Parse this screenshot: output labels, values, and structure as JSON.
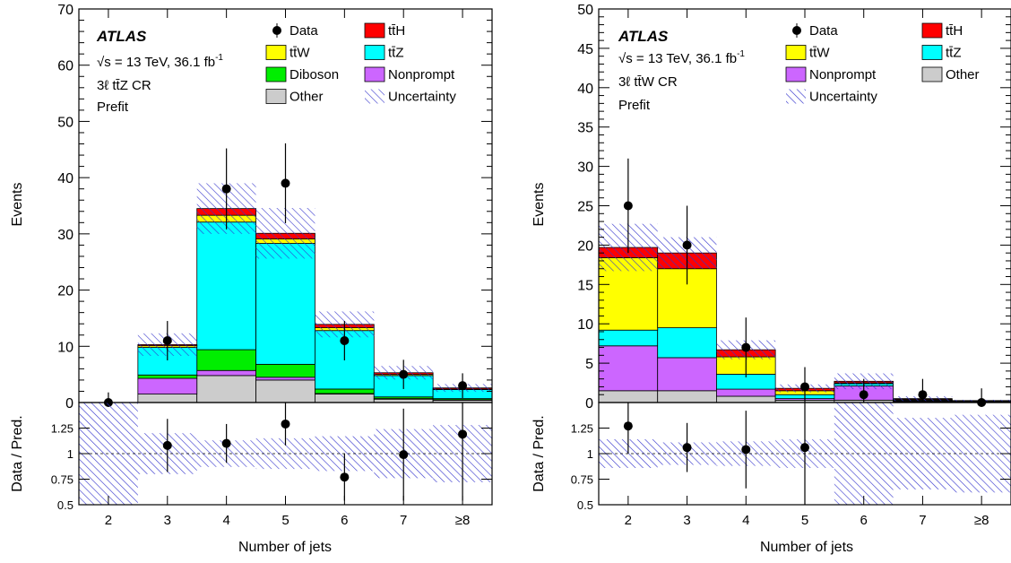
{
  "colors": {
    "ttH": "#ff0000",
    "ttW": "#ffff00",
    "ttZ": "#00ffff",
    "diboson": "#00ee00",
    "nonprompt": "#cc66ff",
    "other": "#cccccc",
    "uncertainty": "#3333cc",
    "data": "#000000"
  },
  "chart_data": [
    {
      "type": "bar",
      "stacked": true,
      "experiment": "ATLAS",
      "energy_label": "√s = 13 TeV, 36.1 fb",
      "energy_sup": "-1",
      "region_label": "3ℓ tt̄Z CR",
      "status_label": "Prefit",
      "categories": [
        "2",
        "3",
        "4",
        "5",
        "6",
        "7",
        "≥8"
      ],
      "xlabel": "Number of jets",
      "ylabel": "Events",
      "ylim": [
        0,
        70
      ],
      "yticks": [
        "0",
        "10",
        "20",
        "30",
        "40",
        "50",
        "60",
        "70"
      ],
      "series": [
        {
          "name": "Other",
          "color_key": "other",
          "values": [
            0,
            1.5,
            4.8,
            4.0,
            1.5,
            0.6,
            0.4
          ]
        },
        {
          "name": "Nonprompt",
          "color_key": "nonprompt",
          "values": [
            0,
            2.8,
            0.9,
            0.5,
            0.1,
            0.1,
            0.1
          ]
        },
        {
          "name": "Diboson",
          "color_key": "diboson",
          "values": [
            0,
            0.6,
            3.7,
            2.3,
            0.8,
            0.3,
            0.2
          ]
        },
        {
          "name": "tt̄Z",
          "color_key": "ttZ",
          "values": [
            0,
            4.9,
            22.7,
            21.5,
            10.4,
            3.8,
            1.6
          ]
        },
        {
          "name": "tt̄W",
          "color_key": "ttW",
          "values": [
            0,
            0.3,
            1.2,
            0.8,
            0.5,
            0.2,
            0.1
          ]
        },
        {
          "name": "tt̄H",
          "color_key": "ttH",
          "values": [
            0,
            0.2,
            1.2,
            1.0,
            0.6,
            0.3,
            0.2
          ]
        }
      ],
      "uncertainty": [
        0,
        2.0,
        4.5,
        4.5,
        2.3,
        1.2,
        0.7
      ],
      "data": {
        "name": "Data",
        "values": [
          0,
          11,
          38,
          39,
          11,
          5,
          3
        ],
        "errors": [
          1.8,
          3.5,
          7.2,
          7.1,
          3.5,
          2.6,
          2.2
        ]
      },
      "legend": [
        {
          "label": "Data",
          "kind": "data"
        },
        {
          "label": "tt̄H",
          "kind": "box",
          "color_key": "ttH"
        },
        {
          "label": "tt̄W",
          "kind": "box",
          "color_key": "ttW"
        },
        {
          "label": "tt̄Z",
          "kind": "box",
          "color_key": "ttZ"
        },
        {
          "label": "Diboson",
          "kind": "box",
          "color_key": "diboson"
        },
        {
          "label": "Nonprompt",
          "kind": "box",
          "color_key": "nonprompt"
        },
        {
          "label": "Other",
          "kind": "box",
          "color_key": "other"
        },
        {
          "label": "Uncertainty",
          "kind": "hatch"
        }
      ],
      "ratio": {
        "ylabel": "Data / Pred.",
        "ylim": [
          0.5,
          1.5
        ],
        "yticks": [
          "0.5",
          "0.75",
          "1",
          "1.25"
        ],
        "values": [
          null,
          1.08,
          1.1,
          1.29,
          0.77,
          0.99,
          1.19
        ],
        "errors": [
          null,
          0.26,
          0.19,
          0.21,
          0.23,
          0.45,
          0.65
        ],
        "uncertainty": [
          1,
          0.2,
          0.13,
          0.15,
          0.17,
          0.24,
          0.28
        ]
      }
    },
    {
      "type": "bar",
      "stacked": true,
      "experiment": "ATLAS",
      "energy_label": "√s = 13 TeV, 36.1 fb",
      "energy_sup": "-1",
      "region_label": "3ℓ tt̄W CR",
      "status_label": "Prefit",
      "categories": [
        "2",
        "3",
        "4",
        "5",
        "6",
        "7",
        "≥8"
      ],
      "xlabel": "Number of jets",
      "ylabel": "Events",
      "ylim": [
        0,
        50
      ],
      "yticks": [
        "0",
        "5",
        "10",
        "15",
        "20",
        "25",
        "30",
        "35",
        "40",
        "45",
        "50"
      ],
      "series": [
        {
          "name": "Other",
          "color_key": "other",
          "values": [
            1.5,
            1.5,
            0.8,
            0.3,
            0.3,
            0.1,
            0.05
          ]
        },
        {
          "name": "Nonprompt",
          "color_key": "nonprompt",
          "values": [
            5.7,
            4.2,
            0.9,
            0.2,
            1.8,
            0.1,
            0.05
          ]
        },
        {
          "name": "tt̄Z",
          "color_key": "ttZ",
          "values": [
            2.0,
            3.8,
            1.9,
            0.5,
            0.3,
            0.1,
            0.05
          ]
        },
        {
          "name": "tt̄W",
          "color_key": "ttW",
          "values": [
            9.2,
            7.5,
            2.2,
            0.5,
            0.1,
            0.1,
            0.05
          ]
        },
        {
          "name": "tt̄H",
          "color_key": "ttH",
          "values": [
            1.3,
            2.0,
            0.9,
            0.3,
            0.2,
            0.1,
            0.05
          ]
        }
      ],
      "uncertainty": [
        3.0,
        2.0,
        1.2,
        0.5,
        1.0,
        0.3,
        0.1
      ],
      "data": {
        "name": "Data",
        "values": [
          25,
          20,
          7,
          2,
          1,
          1,
          0
        ],
        "errors": [
          6.0,
          5.0,
          3.8,
          2.5,
          2.0,
          2.0,
          1.8
        ]
      },
      "legend": [
        {
          "label": "Data",
          "kind": "data"
        },
        {
          "label": "tt̄H",
          "kind": "box",
          "color_key": "ttH"
        },
        {
          "label": "tt̄W",
          "kind": "box",
          "color_key": "ttW"
        },
        {
          "label": "tt̄Z",
          "kind": "box",
          "color_key": "ttZ"
        },
        {
          "label": "Nonprompt",
          "kind": "box",
          "color_key": "nonprompt"
        },
        {
          "label": "Other",
          "kind": "box",
          "color_key": "other"
        },
        {
          "label": "Uncertainty",
          "kind": "hatch"
        }
      ],
      "ratio": {
        "ylabel": "Data / Pred.",
        "ylim": [
          0.5,
          1.5
        ],
        "yticks": [
          "0.5",
          "0.75",
          "1",
          "1.25"
        ],
        "values": [
          1.27,
          1.06,
          1.04,
          1.06,
          null,
          null,
          null
        ],
        "errors": [
          0.27,
          0.24,
          0.38,
          0.6,
          null,
          null,
          null
        ],
        "uncertainty": [
          0.14,
          0.11,
          0.12,
          0.14,
          0.55,
          0.35,
          0.38
        ]
      }
    }
  ]
}
